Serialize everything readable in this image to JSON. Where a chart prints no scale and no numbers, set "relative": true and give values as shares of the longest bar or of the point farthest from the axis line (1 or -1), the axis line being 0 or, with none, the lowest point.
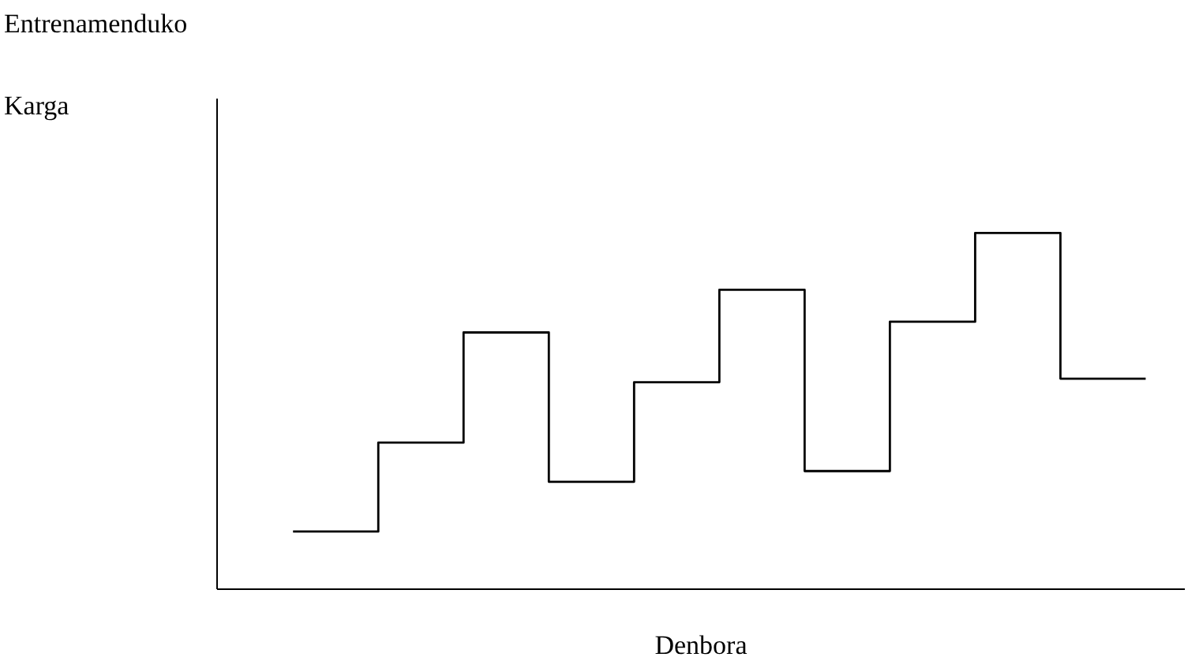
{
  "chart_data": {
    "type": "step",
    "relative": true,
    "xlabel": "Denbora",
    "ylabel": "Entrenamenduko Karga",
    "categories": [
      null,
      null,
      null,
      null,
      null,
      null,
      null,
      null,
      null,
      null,
      null
    ],
    "series": [
      {
        "color": "#000000",
        "values": [
          0.16,
          0.41,
          0.72,
          0.3,
          0.58,
          0.84,
          0.33,
          0.75,
          1,
          0.59,
          0.59
        ]
      }
    ],
    "grid": false,
    "tick_labels": false,
    "marker": "none",
    "line_style": "solid"
  }
}
